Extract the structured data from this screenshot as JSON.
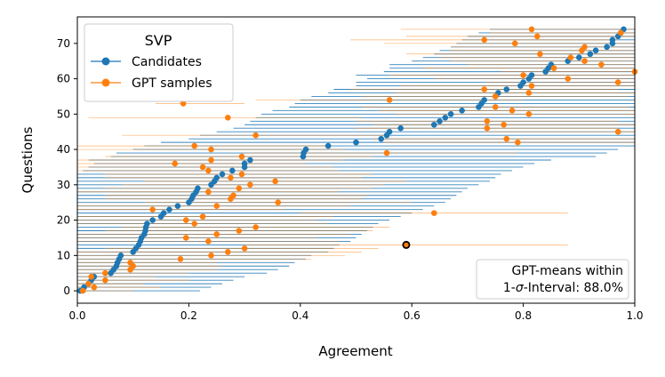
{
  "chart_data": {
    "type": "scatter",
    "title": "",
    "xlabel": "Agreement",
    "ylabel": "Questions",
    "xlim": [
      0,
      1
    ],
    "ylim": [
      -3.5,
      77.5
    ],
    "xticks": [
      "0.0",
      "0.2",
      "0.4",
      "0.6",
      "0.8",
      "1.0"
    ],
    "yticks": [
      "0",
      "10",
      "20",
      "30",
      "40",
      "50",
      "60",
      "70"
    ],
    "legend": {
      "title": "SVP",
      "position": "top-left",
      "entries": [
        "Candidates",
        "GPT samples"
      ]
    },
    "colors": {
      "candidates": "#1f77b4",
      "gpt": "#ff7f0e",
      "highlight_edge": "#000000"
    },
    "highlight": {
      "question": 13,
      "value": 0.59
    },
    "annotation": {
      "line1": "GPT-means within",
      "prefix": "1-",
      "sigma": "σ",
      "suffix": "-Interval: 88.0%",
      "position": "bottom-right"
    },
    "series": [
      {
        "name": "Candidates",
        "values": [
          0.005,
          0.012,
          0.02,
          0.025,
          0.03,
          0.06,
          0.065,
          0.07,
          0.072,
          0.075,
          0.078,
          0.1,
          0.105,
          0.11,
          0.113,
          0.115,
          0.12,
          0.122,
          0.123,
          0.125,
          0.135,
          0.15,
          0.155,
          0.165,
          0.18,
          0.2,
          0.205,
          0.208,
          0.213,
          0.216,
          0.24,
          0.246,
          0.25,
          0.26,
          0.278,
          0.3,
          0.3,
          0.31,
          0.405,
          0.406,
          0.41,
          0.45,
          0.5,
          0.545,
          0.555,
          0.56,
          0.58,
          0.64,
          0.65,
          0.66,
          0.67,
          0.69,
          0.72,
          0.725,
          0.73,
          0.75,
          0.755,
          0.77,
          0.795,
          0.8,
          0.81,
          0.815,
          0.84,
          0.845,
          0.85,
          0.88,
          0.9,
          0.92,
          0.93,
          0.95,
          0.96,
          0.96,
          0.97,
          0.975,
          0.98
        ],
        "ci_low": [
          0.0,
          0.0,
          0.0,
          0.0,
          0.0,
          0.0,
          0.0,
          0.0,
          0.0,
          0.0,
          0.0,
          0.0,
          0.0,
          0.0,
          0.0,
          0.0,
          0.0,
          0.0,
          0.0,
          0.0,
          0.0,
          0.0,
          0.0,
          0.0,
          0.0,
          0.0,
          0.0,
          0.0,
          0.0,
          0.0,
          0.0,
          0.0,
          0.0,
          0.0,
          0.01,
          0.02,
          0.03,
          0.02,
          0.06,
          0.07,
          0.1,
          0.12,
          0.15,
          0.2,
          0.22,
          0.25,
          0.28,
          0.3,
          0.31,
          0.32,
          0.33,
          0.35,
          0.38,
          0.39,
          0.4,
          0.42,
          0.45,
          0.46,
          0.5,
          0.5,
          0.52,
          0.5,
          0.55,
          0.56,
          0.56,
          0.6,
          0.62,
          0.64,
          0.65,
          0.67,
          0.68,
          0.69,
          0.7,
          0.72,
          0.74
        ],
        "ci_high": [
          0.22,
          0.24,
          0.26,
          0.28,
          0.3,
          0.34,
          0.36,
          0.38,
          0.39,
          0.41,
          0.42,
          0.45,
          0.46,
          0.47,
          0.49,
          0.5,
          0.51,
          0.52,
          0.53,
          0.54,
          0.56,
          0.58,
          0.6,
          0.62,
          0.64,
          0.66,
          0.67,
          0.68,
          0.69,
          0.7,
          0.72,
          0.74,
          0.75,
          0.76,
          0.78,
          0.8,
          0.82,
          0.85,
          0.93,
          0.95,
          0.97,
          1.0,
          1.0,
          1.0,
          1.0,
          1.0,
          1.0,
          1.0,
          1.0,
          1.0,
          1.0,
          1.0,
          1.0,
          1.0,
          1.0,
          1.0,
          1.0,
          1.0,
          1.0,
          1.0,
          1.0,
          1.0,
          1.0,
          1.0,
          1.0,
          1.0,
          1.0,
          1.0,
          1.0,
          1.0,
          1.0,
          1.0,
          1.0,
          1.0,
          1.0
        ]
      },
      {
        "name": "GPT samples",
        "values": [
          0.01,
          0.03,
          0.02,
          0.05,
          0.025,
          0.05,
          0.095,
          0.1,
          0.095,
          0.185,
          0.24,
          0.27,
          0.3,
          0.59,
          0.235,
          0.195,
          0.25,
          0.29,
          0.32,
          0.21,
          0.195,
          0.225,
          0.64,
          0.135,
          0.25,
          0.36,
          0.275,
          0.28,
          0.235,
          0.29,
          0.31,
          0.355,
          0.275,
          0.295,
          0.235,
          0.225,
          0.175,
          0.24,
          0.295,
          0.555,
          0.24,
          0.21,
          0.79,
          0.77,
          0.32,
          0.97,
          0.735,
          0.765,
          0.735,
          0.27,
          0.81,
          0.78,
          0.75,
          0.19,
          0.56,
          0.75,
          0.81,
          0.73,
          0.815,
          0.97,
          0.88,
          0.8,
          1.0,
          0.855,
          0.94,
          0.91,
          0.885,
          0.83,
          0.905,
          0.91,
          0.785,
          0.73,
          0.825,
          0.975,
          0.815
        ],
        "ci_low": [
          0.0,
          0.0,
          0.0,
          0.0,
          0.0,
          0.0,
          0.0,
          0.0,
          0.0,
          0.0,
          0.0,
          0.0,
          0.05,
          0.3,
          0.0,
          0.0,
          0.0,
          0.05,
          0.08,
          0.0,
          0.0,
          0.0,
          0.4,
          0.0,
          0.0,
          0.12,
          0.05,
          0.05,
          0.0,
          0.05,
          0.08,
          0.12,
          0.05,
          0.05,
          0.0,
          0.0,
          0.0,
          0.0,
          0.05,
          0.3,
          0.0,
          0.0,
          0.55,
          0.53,
          0.08,
          0.73,
          0.5,
          0.53,
          0.5,
          0.02,
          0.57,
          0.54,
          0.51,
          0.14,
          0.32,
          0.51,
          0.57,
          0.49,
          0.58,
          0.73,
          0.64,
          0.56,
          0.76,
          0.62,
          0.7,
          0.67,
          0.65,
          0.59,
          0.67,
          0.67,
          0.55,
          0.49,
          0.59,
          0.74,
          0.58
        ],
        "ci_high": [
          0.1,
          0.15,
          0.12,
          0.2,
          0.14,
          0.2,
          0.25,
          0.26,
          0.25,
          0.42,
          0.48,
          0.51,
          0.54,
          0.88,
          0.47,
          0.43,
          0.49,
          0.53,
          0.56,
          0.45,
          0.43,
          0.46,
          0.88,
          0.37,
          0.49,
          0.6,
          0.51,
          0.52,
          0.47,
          0.53,
          0.55,
          0.59,
          0.51,
          0.53,
          0.47,
          0.46,
          0.41,
          0.48,
          0.53,
          0.79,
          0.48,
          0.45,
          1.0,
          1.0,
          0.56,
          1.0,
          0.97,
          1.0,
          0.97,
          0.51,
          1.0,
          1.0,
          0.99,
          0.3,
          0.8,
          0.99,
          1.0,
          0.97,
          1.0,
          1.0,
          1.0,
          1.0,
          1.0,
          1.0,
          1.0,
          1.0,
          1.0,
          1.0,
          1.0,
          1.0,
          1.0,
          0.97,
          1.0,
          1.0,
          1.0
        ]
      }
    ]
  }
}
